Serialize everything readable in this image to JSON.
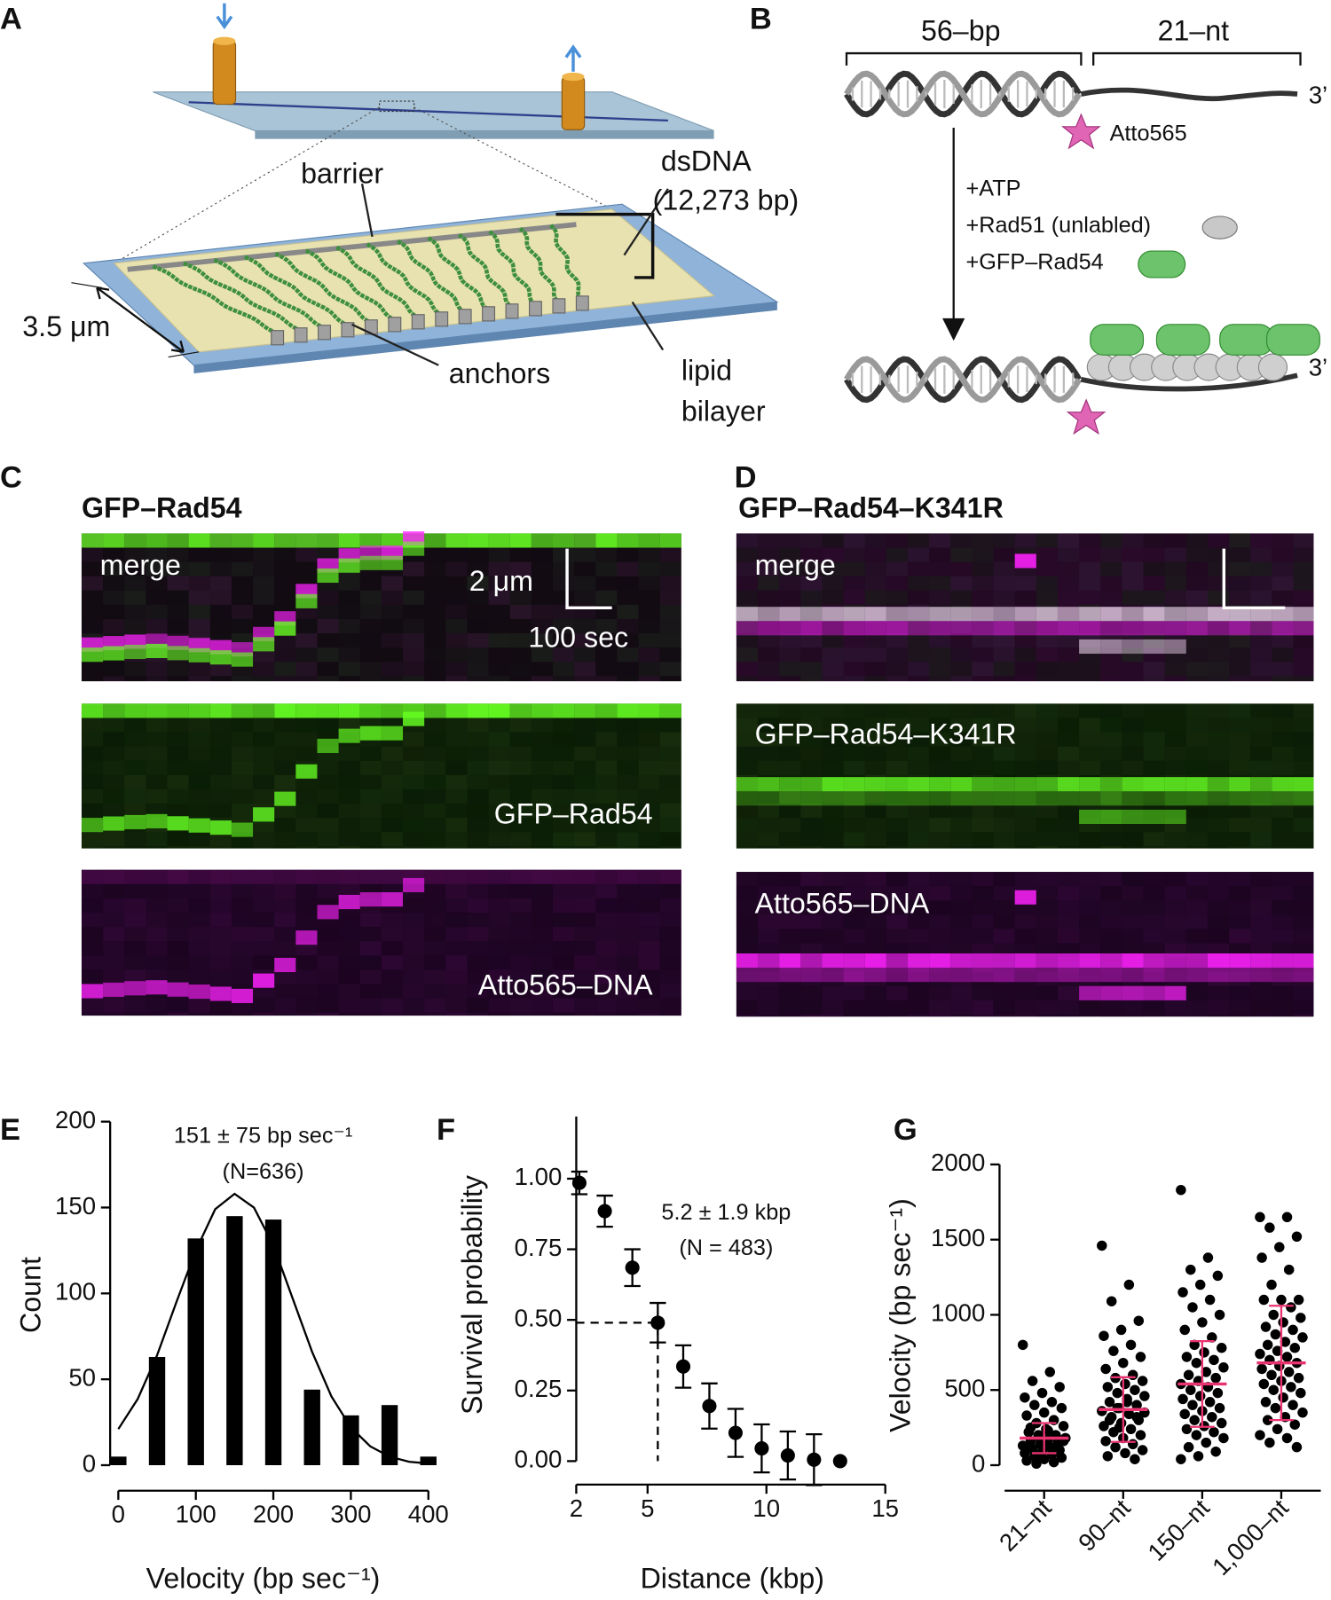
{
  "panels": {
    "A": {
      "label": "A",
      "barrier": "barrier",
      "dsdna": "dsDNA",
      "dsdna_length": "(12,273 bp)",
      "width": "3.5 μm",
      "anchors": "anchors",
      "lipid": "lipid",
      "bilayer": "bilayer"
    },
    "B": {
      "label": "B",
      "duplex": "56–bp",
      "overhang": "21–nt",
      "three_prime": "3’",
      "dye": "Atto565",
      "additions": [
        "+ATP",
        "+Rad51 (unlabled)",
        "+GFP–Rad54"
      ]
    },
    "C": {
      "label": "C",
      "title": "GFP–Rad54",
      "channels": [
        "merge",
        "GFP–Rad54",
        "Atto565–DNA"
      ],
      "scale_length": "2 μm",
      "scale_time": "100 sec"
    },
    "D": {
      "label": "D",
      "title": "GFP–Rad54–K341R",
      "channels": [
        "merge",
        "GFP–Rad54–K341R",
        "Atto565–DNA"
      ]
    }
  },
  "chart_data": [
    {
      "type": "bar",
      "label": "E",
      "annotation": [
        "151 ± 75 bp sec⁻¹",
        "(N=636)"
      ],
      "x_label": "Velocity (bp sec⁻¹)",
      "y_label": "Count",
      "x": [
        0,
        50,
        100,
        150,
        200,
        250,
        300,
        350,
        400
      ],
      "values": [
        5,
        63,
        132,
        145,
        143,
        44,
        29,
        35,
        5
      ],
      "color": "#000000",
      "fit": {
        "x": [
          0,
          25,
          50,
          75,
          100,
          125,
          150,
          175,
          200,
          225,
          250,
          275,
          300,
          325,
          350,
          375,
          400
        ],
        "values": [
          21,
          38.5,
          64,
          95,
          125,
          149,
          158,
          150,
          128,
          97,
          66,
          40,
          22,
          11,
          5,
          2,
          1
        ]
      },
      "xlim": [
        0,
        400
      ],
      "xticks": [
        0,
        100,
        200,
        300,
        400
      ],
      "ylim": [
        0,
        200
      ],
      "yticks": [
        0,
        50,
        100,
        150,
        200
      ]
    },
    {
      "type": "scatter",
      "label": "F",
      "annotation": [
        "5.2 ± 1.9 kbp",
        "(N = 483)"
      ],
      "x_label": "Distance (kbp)",
      "y_label": "Survival probability",
      "x": [
        2.13,
        3.2,
        4.36,
        5.43,
        6.5,
        7.6,
        8.7,
        9.8,
        10.9,
        12.0,
        13.1
      ],
      "values": [
        0.985,
        0.885,
        0.685,
        0.49,
        0.335,
        0.195,
        0.1,
        0.045,
        0.02,
        0.005,
        0.0
      ],
      "errors": [
        0.04,
        0.055,
        0.065,
        0.07,
        0.075,
        0.08,
        0.085,
        0.085,
        0.085,
        0.09,
        null
      ],
      "color": "#000000",
      "xlim": [
        2,
        15
      ],
      "xticks": [
        2,
        5,
        10,
        15
      ],
      "ylim": [
        0,
        1.22
      ],
      "yticks": [
        {
          "value": 0,
          "label": "0.00"
        },
        {
          "value": 0.25,
          "label": "0.25"
        },
        {
          "value": 0.5,
          "label": "0.50"
        },
        {
          "value": 0.75,
          "label": "0.75"
        },
        {
          "value": 1,
          "label": "1.00"
        }
      ]
    },
    {
      "type": "strip",
      "label": "G",
      "y_label": "Velocity (bp sec⁻¹)",
      "categories": [
        "21–nt",
        "90–nt",
        "150–nt",
        "1,000–nt"
      ],
      "values": [
        [
          800,
          620,
          560,
          520,
          480,
          450,
          420,
          400,
          380,
          350,
          330,
          300,
          280,
          260,
          240,
          220,
          200,
          190,
          180,
          170,
          160,
          150,
          140,
          130,
          120,
          110,
          100,
          90,
          80,
          70,
          60,
          50,
          40,
          30,
          20,
          10,
          160,
          140,
          120,
          100,
          200,
          180,
          230,
          250,
          90,
          70
        ],
        [
          1460,
          1200,
          1090,
          960,
          900,
          860,
          800,
          760,
          720,
          680,
          640,
          600,
          580,
          560,
          540,
          520,
          500,
          480,
          460,
          440,
          420,
          400,
          380,
          360,
          340,
          320,
          300,
          280,
          260,
          240,
          220,
          200,
          180,
          160,
          140,
          120,
          100,
          80,
          60,
          40,
          380,
          350,
          420,
          300,
          320,
          250
        ],
        [
          1830,
          1380,
          1300,
          1260,
          1200,
          1150,
          1100,
          1050,
          1000,
          950,
          900,
          850,
          800,
          780,
          750,
          720,
          700,
          680,
          650,
          620,
          600,
          580,
          560,
          540,
          520,
          500,
          480,
          460,
          440,
          420,
          400,
          380,
          360,
          340,
          320,
          300,
          280,
          260,
          240,
          220,
          200,
          180,
          150,
          120,
          90,
          60,
          40
        ],
        [
          1650,
          1650,
          1580,
          1520,
          1450,
          1380,
          1300,
          1200,
          1100,
          1100,
          1100,
          1050,
          1000,
          980,
          950,
          920,
          900,
          870,
          850,
          820,
          800,
          780,
          760,
          740,
          720,
          700,
          680,
          660,
          640,
          620,
          600,
          580,
          560,
          540,
          520,
          500,
          480,
          450,
          420,
          400,
          380,
          350,
          320,
          300,
          270,
          240,
          200,
          180,
          150,
          120
        ]
      ],
      "mean": [
        180,
        370,
        540,
        680
      ],
      "sd": [
        100,
        215,
        285,
        380
      ],
      "color": "#000000",
      "mean_color": "#e8336f",
      "ylim": [
        0,
        2000
      ],
      "yticks": [
        0,
        500,
        1000,
        1500,
        2000
      ]
    }
  ]
}
